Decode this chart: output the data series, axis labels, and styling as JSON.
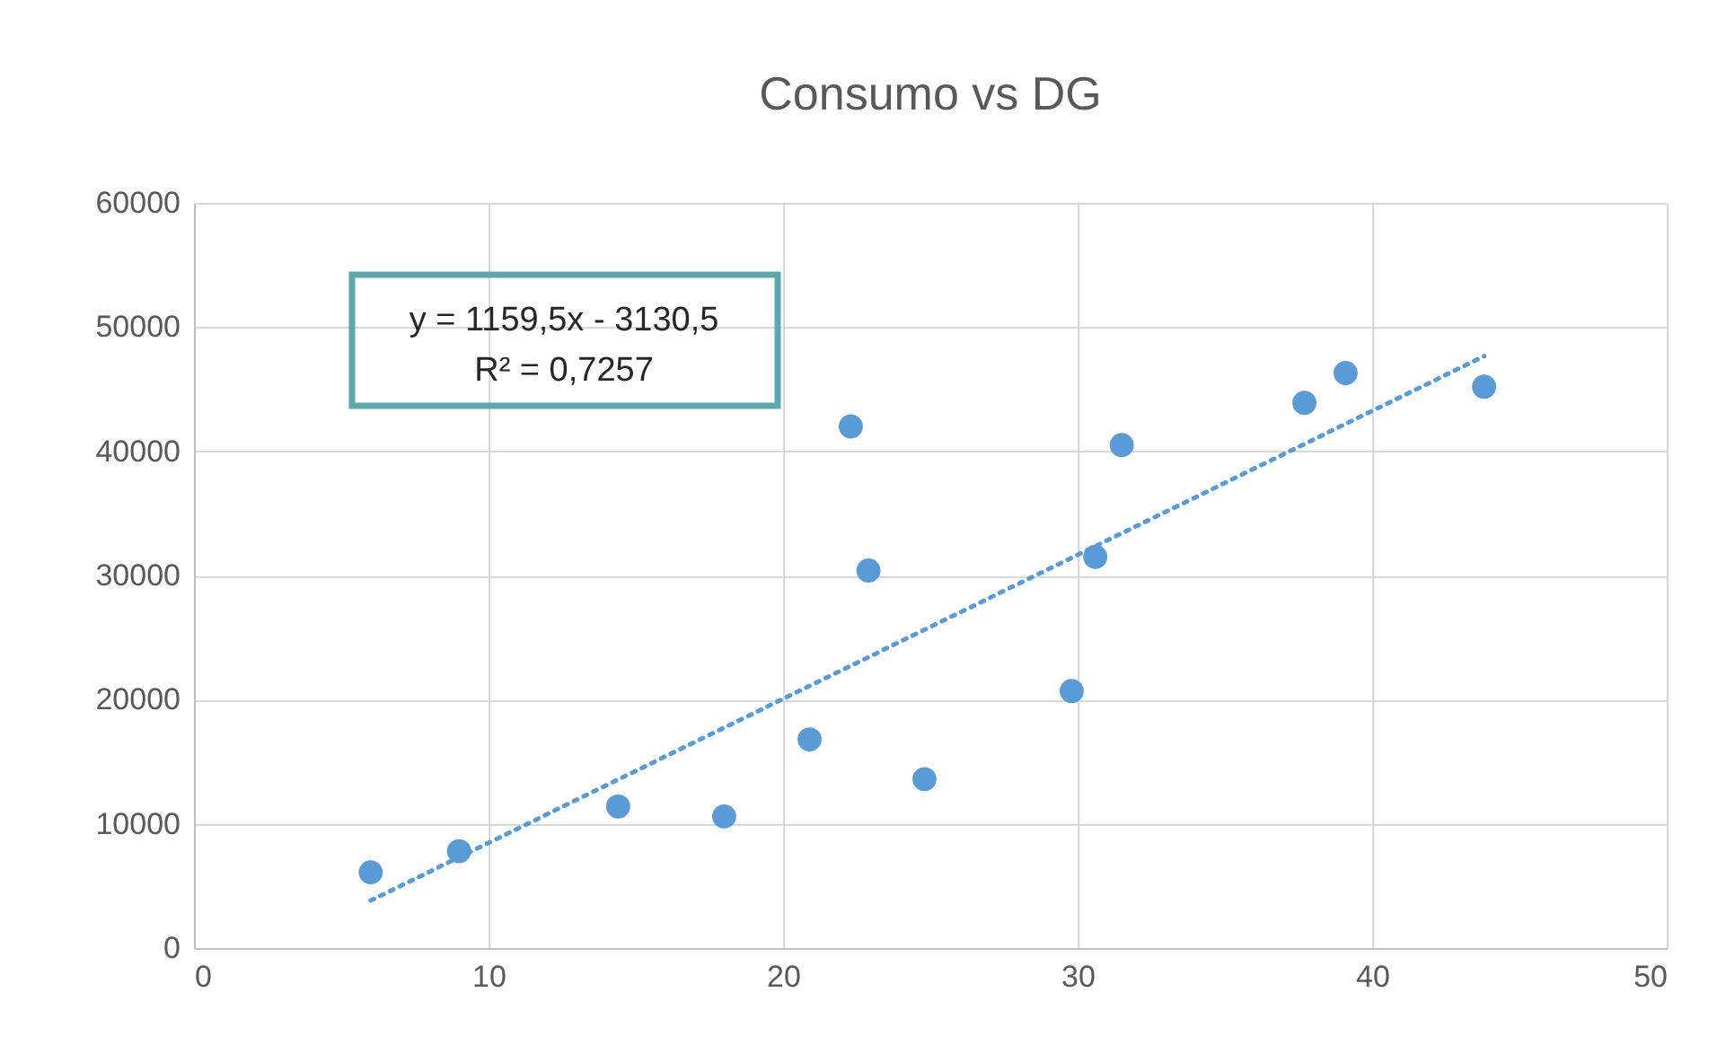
{
  "chart_data": {
    "type": "scatter",
    "title": "Consumo vs DG",
    "xlim": [
      0,
      50
    ],
    "xticks": [
      0,
      10,
      20,
      30,
      40,
      50
    ],
    "ylim": [
      0,
      60000
    ],
    "yticks": [
      0,
      10000,
      20000,
      30000,
      40000,
      50000,
      60000
    ],
    "grid": true,
    "legend": false,
    "marker": "circle",
    "annotations": [
      "y = 1159,5x - 3130,5",
      "R² = 0,7257"
    ],
    "series": [
      {
        "color": "#5b9bd5",
        "x": [
          6.0,
          9.0,
          14.4,
          18.0,
          20.9,
          22.3,
          22.9,
          24.8,
          29.8,
          30.6,
          31.5,
          37.7,
          39.1,
          43.8
        ],
        "values": [
          6100,
          7800,
          11400,
          10600,
          16800,
          42000,
          30400,
          13600,
          20700,
          31500,
          40500,
          43900,
          46300,
          45200
        ]
      },
      {
        "type": "line",
        "color": "#5b9bd5",
        "line_style": "dotted",
        "marker": "none",
        "x": [
          6.0,
          43.8
        ],
        "values": [
          3830,
          47660
        ]
      }
    ]
  }
}
